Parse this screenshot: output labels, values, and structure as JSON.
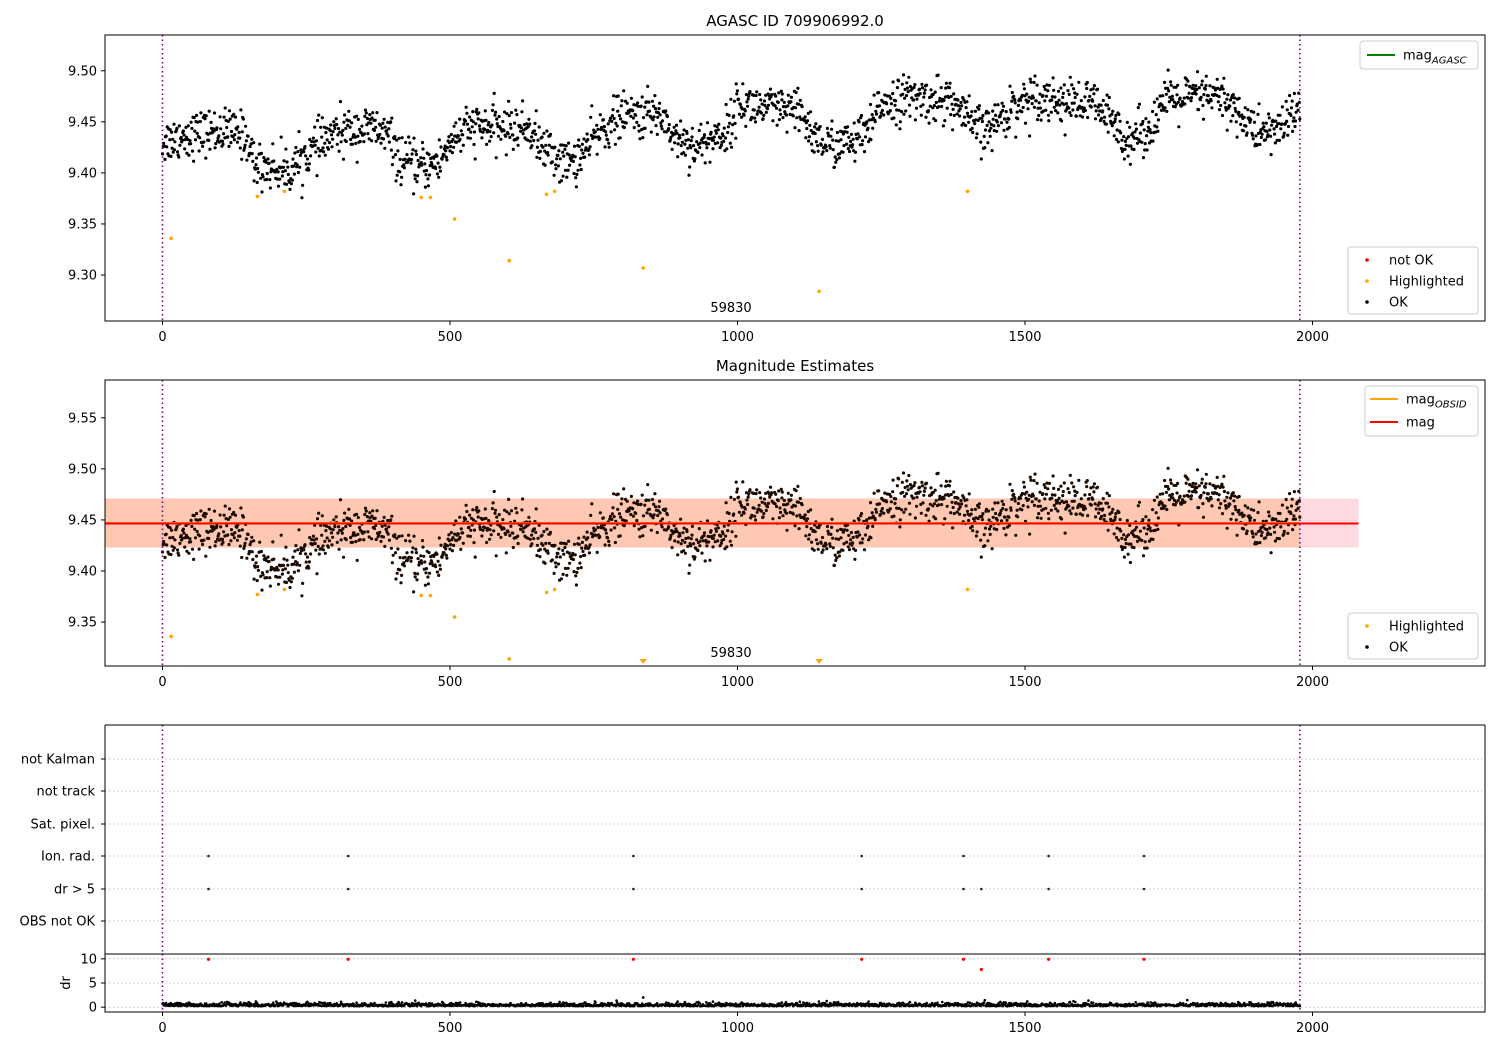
{
  "figure": {
    "title_top": "AGASC ID 709906992.0",
    "title_middle": "Magnitude Estimates"
  },
  "colors": {
    "ok": "#000000",
    "highlighted": "#ffa500",
    "not_ok": "#ff0000",
    "mag_agasc": "#008000",
    "mag_obsid": "#ffa500",
    "mag": "#ff0000",
    "vline": "#800080",
    "band_pink": "#ffc0cb",
    "band_orange": "#ffd2b4",
    "grid": "#b0b0b0"
  },
  "chart_data": [
    {
      "type": "scatter",
      "title": "AGASC ID 709906992.0",
      "xlim": [
        -100,
        2300
      ],
      "ylim": [
        9.255,
        9.535
      ],
      "xticks": [
        0,
        500,
        1000,
        1500,
        2000
      ],
      "yticks": [
        9.3,
        9.35,
        9.4,
        9.45,
        9.5
      ],
      "obsid_label": "59830",
      "obsid_label_x": 980,
      "vlines_x": [
        0,
        1978
      ],
      "legend_upper": [
        {
          "label": "mag",
          "sub": "AGASC",
          "color": "#008000"
        }
      ],
      "legend_lower": [
        {
          "label": "not OK",
          "color": "#ff0000"
        },
        {
          "label": "Highlighted",
          "color": "#ffa500"
        },
        {
          "label": "OK",
          "color": "#000000"
        }
      ],
      "series": [
        {
          "name": "Highlighted",
          "points": [
            [
              15,
              9.336
            ],
            [
              165,
              9.377
            ],
            [
              212,
              9.382
            ],
            [
              450,
              9.376
            ],
            [
              466,
              9.376
            ],
            [
              508,
              9.355
            ],
            [
              603,
              9.314
            ],
            [
              668,
              9.379
            ],
            [
              682,
              9.382
            ],
            [
              836,
              9.307
            ],
            [
              1142,
              9.284
            ],
            [
              1400,
              9.382
            ]
          ]
        }
      ],
      "ok_trend": {
        "n": 1900,
        "x_range": [
          0,
          1978
        ],
        "knots": [
          [
            0,
            9.43
          ],
          [
            40,
            9.437
          ],
          [
            100,
            9.441
          ],
          [
            145,
            9.437
          ],
          [
            160,
            9.408
          ],
          [
            220,
            9.402
          ],
          [
            250,
            9.418
          ],
          [
            300,
            9.438
          ],
          [
            330,
            9.442
          ],
          [
            370,
            9.443
          ],
          [
            395,
            9.435
          ],
          [
            410,
            9.413
          ],
          [
            450,
            9.405
          ],
          [
            485,
            9.412
          ],
          [
            500,
            9.432
          ],
          [
            540,
            9.445
          ],
          [
            580,
            9.444
          ],
          [
            640,
            9.444
          ],
          [
            655,
            9.428
          ],
          [
            700,
            9.41
          ],
          [
            720,
            9.413
          ],
          [
            760,
            9.44
          ],
          [
            800,
            9.456
          ],
          [
            870,
            9.457
          ],
          [
            885,
            9.438
          ],
          [
            930,
            9.425
          ],
          [
            960,
            9.435
          ],
          [
            985,
            9.442
          ],
          [
            1000,
            9.468
          ],
          [
            1060,
            9.462
          ],
          [
            1110,
            9.458
          ],
          [
            1135,
            9.435
          ],
          [
            1160,
            9.427
          ],
          [
            1200,
            9.43
          ],
          [
            1230,
            9.44
          ],
          [
            1250,
            9.47
          ],
          [
            1300,
            9.473
          ],
          [
            1370,
            9.471
          ],
          [
            1400,
            9.452
          ],
          [
            1430,
            9.44
          ],
          [
            1480,
            9.465
          ],
          [
            1520,
            9.476
          ],
          [
            1580,
            9.468
          ],
          [
            1620,
            9.468
          ],
          [
            1650,
            9.45
          ],
          [
            1680,
            9.433
          ],
          [
            1720,
            9.445
          ],
          [
            1740,
            9.47
          ],
          [
            1800,
            9.475
          ],
          [
            1840,
            9.474
          ],
          [
            1870,
            9.46
          ],
          [
            1900,
            9.44
          ],
          [
            1935,
            9.441
          ],
          [
            1955,
            9.452
          ],
          [
            1978,
            9.462
          ]
        ],
        "noise": 0.011
      }
    },
    {
      "type": "scatter",
      "title": "Magnitude Estimates",
      "xlim": [
        -100,
        2300
      ],
      "ylim": [
        9.307,
        9.587
      ],
      "xticks": [
        0,
        500,
        1000,
        1500,
        2000
      ],
      "yticks": [
        9.35,
        9.4,
        9.45,
        9.5,
        9.55
      ],
      "obsid_label": "59830",
      "obsid_label_x": 980,
      "vlines_x": [
        0,
        1978
      ],
      "mag_obsid": {
        "value": 9.447,
        "band": [
          9.423,
          9.471
        ],
        "x_range": [
          -100,
          1978
        ]
      },
      "mag": {
        "value": 9.447,
        "band": [
          9.423,
          9.471
        ],
        "x_range": [
          -100,
          2080
        ]
      },
      "legend_upper": [
        {
          "label": "mag",
          "sub": "OBSID",
          "color": "#ffa500"
        },
        {
          "label": "mag",
          "sub": "",
          "color": "#ff0000"
        }
      ],
      "legend_lower": [
        {
          "label": "Highlighted",
          "color": "#ffa500"
        },
        {
          "label": "OK",
          "color": "#000000"
        }
      ],
      "series": [
        {
          "name": "Highlighted",
          "points": [
            [
              15,
              9.336
            ],
            [
              165,
              9.377
            ],
            [
              212,
              9.382
            ],
            [
              450,
              9.376
            ],
            [
              466,
              9.376
            ],
            [
              508,
              9.355
            ],
            [
              603,
              9.314
            ],
            [
              668,
              9.379
            ],
            [
              682,
              9.382
            ],
            [
              1400,
              9.382
            ]
          ]
        },
        {
          "name": "Highlighted (off-axis markers)",
          "points": [
            [
              836,
              9.307
            ],
            [
              1142,
              9.307
            ]
          ]
        }
      ]
    },
    {
      "type": "scatter",
      "title": "",
      "xlim": [
        -100,
        2300
      ],
      "categories": [
        "not Kalman",
        "not track",
        "Sat. pixel.",
        "Ion. rad.",
        "dr > 5",
        "OBS not OK"
      ],
      "flags": {
        "Ion. rad.": [
          80,
          323,
          819,
          1216,
          1393,
          1541,
          1707
        ],
        "dr > 5": [
          80,
          323,
          819,
          1216,
          1393,
          1424,
          1541,
          1707
        ]
      },
      "dr": {
        "ylabel": "dr",
        "yticks": [
          0,
          5,
          10
        ],
        "ylim": [
          -1,
          11
        ],
        "outliers": [
          [
            80,
            9.9
          ],
          [
            323,
            9.9
          ],
          [
            819,
            9.9
          ],
          [
            1216,
            9.9
          ],
          [
            1393,
            9.9
          ],
          [
            1424,
            7.8
          ],
          [
            1541,
            9.9
          ],
          [
            1707,
            9.9
          ]
        ],
        "baseline_n": 1900,
        "baseline_range": [
          0,
          1978
        ]
      },
      "xticks": [
        0,
        500,
        1000,
        1500,
        2000
      ],
      "vlines_x": [
        0,
        1978
      ]
    }
  ]
}
